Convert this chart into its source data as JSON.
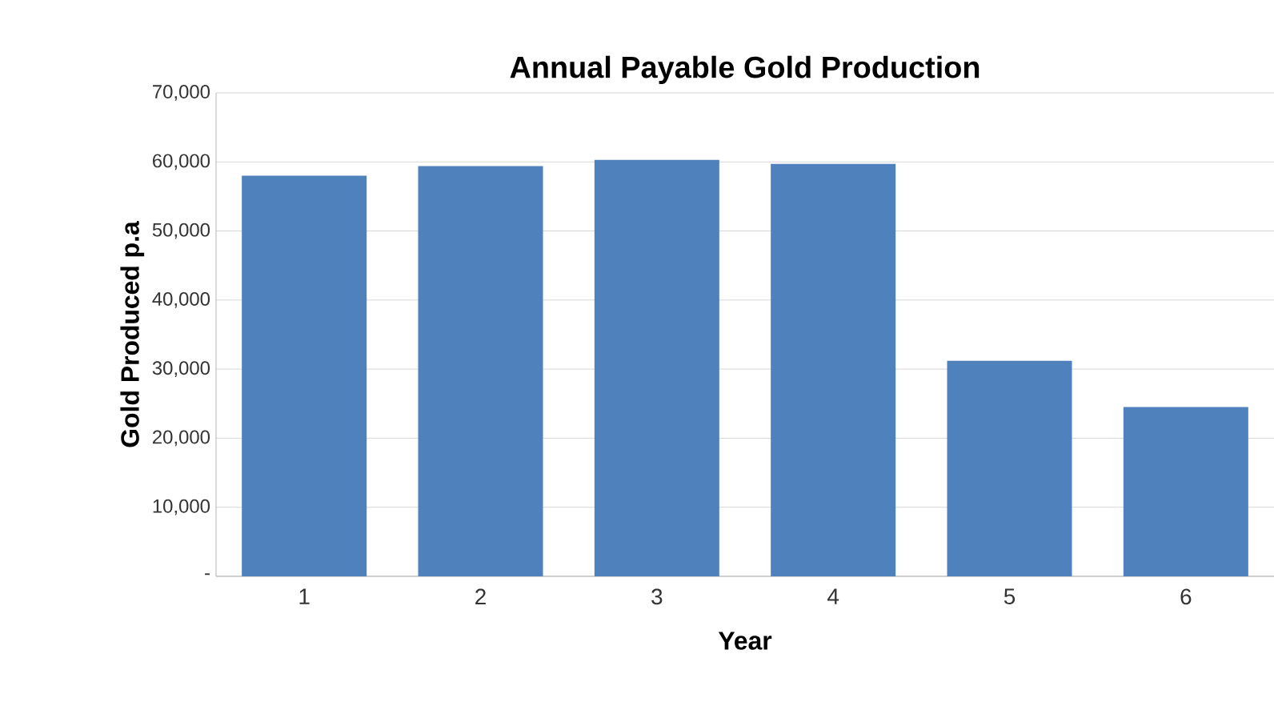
{
  "chart_data": {
    "type": "bar",
    "title": "Annual Payable Gold Production",
    "xlabel": "Year",
    "ylabel": "Gold Produced p.a",
    "categories": [
      "1",
      "2",
      "3",
      "4",
      "5",
      "6"
    ],
    "values": [
      58000,
      59400,
      60300,
      59700,
      31200,
      24500
    ],
    "color": "#4f81bd",
    "ylim": [
      0,
      70000
    ],
    "yticks": [
      {
        "value": 0,
        "label": "-"
      },
      {
        "value": 10000,
        "label": "10,000"
      },
      {
        "value": 20000,
        "label": "20,000"
      },
      {
        "value": 30000,
        "label": "30,000"
      },
      {
        "value": 40000,
        "label": "40,000"
      },
      {
        "value": 50000,
        "label": "50,000"
      },
      {
        "value": 60000,
        "label": "60,000"
      },
      {
        "value": 70000,
        "label": "70,000"
      }
    ],
    "grid": "y"
  }
}
